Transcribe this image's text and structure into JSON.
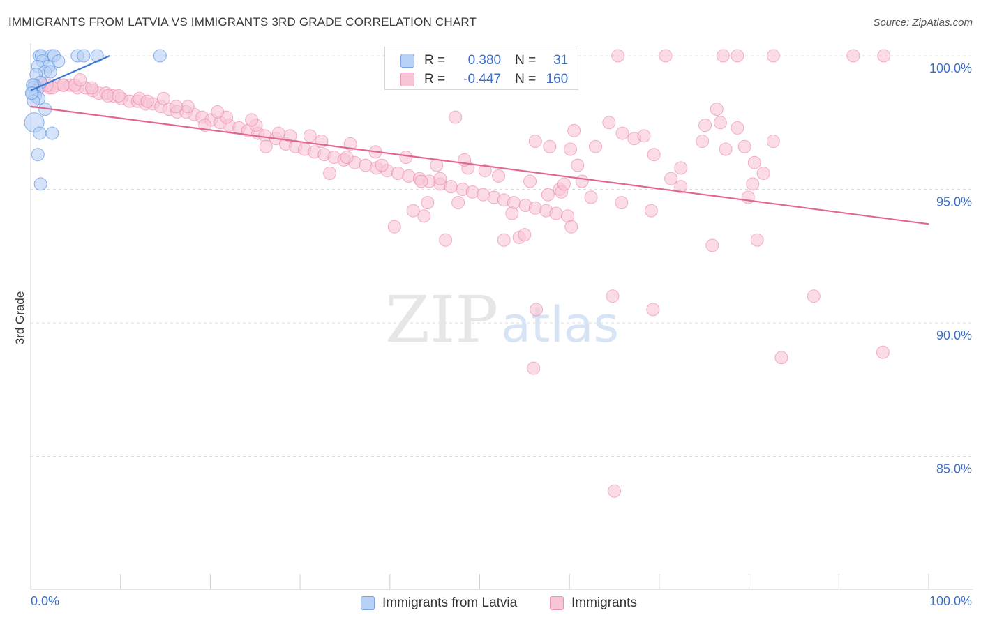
{
  "title": "IMMIGRANTS FROM LATVIA VS IMMIGRANTS 3RD GRADE CORRELATION CHART",
  "source": "Source: ZipAtlas.com",
  "watermark": {
    "zip": "ZIP",
    "atlas": "atlas"
  },
  "colors": {
    "blue": "#4a86d8",
    "blue_fill": "#b7d0f5",
    "blue_line": "#3a78d0",
    "pink": "#e8769b",
    "pink_fill": "#f8c5d6",
    "pink_line": "#e0688f",
    "axis_text": "#3b6fc7",
    "grid": "#dcdcdc"
  },
  "legend": {
    "rows": [
      {
        "r_label": "R =",
        "r_value": "0.380",
        "n_label": "N =",
        "n_value": "31"
      },
      {
        "r_label": "R =",
        "r_value": "-0.447",
        "n_label": "N =",
        "n_value": "160"
      }
    ]
  },
  "bottom_legend": {
    "series1": "Immigrants from Latvia",
    "series2": "Immigrants"
  },
  "chart_data": {
    "type": "scatter",
    "ylabel": "3rd Grade",
    "xlim": [
      0,
      100
    ],
    "ylim": [
      80.8,
      100.2
    ],
    "x_tick_labels": [
      "0.0%",
      "100.0%"
    ],
    "y_ticks": [
      {
        "value": 100,
        "label": "100.0%"
      },
      {
        "value": 95,
        "label": "95.0%"
      },
      {
        "value": 90,
        "label": "90.0%"
      },
      {
        "value": 85,
        "label": "85.0%"
      }
    ],
    "grid": true,
    "series": [
      {
        "name": "Immigrants from Latvia",
        "color": "blue",
        "trend": {
          "x": [
            0,
            8.8
          ],
          "y": [
            98.7,
            100.0
          ]
        },
        "points": [
          [
            1.0,
            100.0
          ],
          [
            1.2,
            100.0
          ],
          [
            2.3,
            100.0
          ],
          [
            2.6,
            100.0
          ],
          [
            5.2,
            100.0
          ],
          [
            5.9,
            100.0
          ],
          [
            7.4,
            100.0
          ],
          [
            14.4,
            100.0
          ],
          [
            1.3,
            99.8
          ],
          [
            2.0,
            99.6
          ],
          [
            3.1,
            99.8
          ],
          [
            0.8,
            99.6
          ],
          [
            1.6,
            99.4
          ],
          [
            2.2,
            99.4
          ],
          [
            0.6,
            99.3
          ],
          [
            1.1,
            99.0
          ],
          [
            0.4,
            98.9
          ],
          [
            0.3,
            98.8
          ],
          [
            0.7,
            98.7
          ],
          [
            0.2,
            98.6
          ],
          [
            0.5,
            98.5
          ],
          [
            0.9,
            98.4
          ],
          [
            0.3,
            98.3
          ],
          [
            1.6,
            98.0
          ],
          [
            0.4,
            97.5
          ],
          [
            2.4,
            97.1
          ],
          [
            1.0,
            97.1
          ],
          [
            0.8,
            96.3
          ],
          [
            1.1,
            95.2
          ],
          [
            0.2,
            98.9
          ],
          [
            0.1,
            98.6
          ]
        ],
        "sizes": [
          9,
          9,
          9,
          9,
          9,
          9,
          9,
          9,
          9,
          9,
          9,
          9,
          9,
          9,
          9,
          9,
          9,
          9,
          9,
          9,
          9,
          9,
          9,
          9,
          14,
          9,
          9,
          9,
          9,
          9,
          9
        ]
      },
      {
        "name": "Immigrants",
        "color": "pink",
        "trend": {
          "x": [
            0,
            100
          ],
          "y": [
            98.1,
            93.7
          ]
        },
        "points": [
          [
            65.4,
            100.0
          ],
          [
            70.7,
            100.0
          ],
          [
            77.1,
            100.0
          ],
          [
            78.7,
            100.0
          ],
          [
            82.7,
            100.0
          ],
          [
            91.6,
            100.0
          ],
          [
            95.0,
            100.0
          ],
          [
            0.5,
            98.9
          ],
          [
            1.3,
            98.9
          ],
          [
            2.1,
            98.8
          ],
          [
            2.9,
            98.9
          ],
          [
            3.7,
            98.9
          ],
          [
            4.4,
            98.9
          ],
          [
            5.2,
            98.8
          ],
          [
            6.1,
            98.8
          ],
          [
            6.9,
            98.7
          ],
          [
            7.6,
            98.6
          ],
          [
            8.4,
            98.6
          ],
          [
            9.2,
            98.5
          ],
          [
            10.1,
            98.4
          ],
          [
            11.0,
            98.3
          ],
          [
            11.9,
            98.3
          ],
          [
            12.8,
            98.2
          ],
          [
            13.6,
            98.2
          ],
          [
            14.5,
            98.1
          ],
          [
            15.4,
            98.0
          ],
          [
            16.3,
            97.9
          ],
          [
            17.3,
            97.9
          ],
          [
            18.2,
            97.8
          ],
          [
            19.1,
            97.7
          ],
          [
            20.1,
            97.6
          ],
          [
            21.1,
            97.5
          ],
          [
            22.1,
            97.4
          ],
          [
            23.2,
            97.3
          ],
          [
            24.2,
            97.2
          ],
          [
            25.3,
            97.1
          ],
          [
            26.1,
            97.0
          ],
          [
            27.3,
            96.9
          ],
          [
            28.4,
            96.7
          ],
          [
            29.5,
            96.6
          ],
          [
            30.5,
            96.5
          ],
          [
            31.6,
            96.4
          ],
          [
            32.7,
            96.3
          ],
          [
            33.8,
            96.2
          ],
          [
            34.9,
            96.1
          ],
          [
            36.1,
            96.0
          ],
          [
            37.3,
            95.9
          ],
          [
            38.5,
            95.8
          ],
          [
            39.7,
            95.7
          ],
          [
            40.9,
            95.6
          ],
          [
            42.1,
            95.5
          ],
          [
            43.3,
            95.4
          ],
          [
            44.4,
            95.3
          ],
          [
            45.6,
            95.2
          ],
          [
            46.8,
            95.1
          ],
          [
            48.1,
            95.0
          ],
          [
            49.2,
            94.9
          ],
          [
            50.4,
            94.8
          ],
          [
            51.6,
            94.7
          ],
          [
            52.7,
            94.6
          ],
          [
            53.8,
            94.5
          ],
          [
            55.1,
            94.4
          ],
          [
            56.2,
            94.3
          ],
          [
            57.4,
            94.2
          ],
          [
            58.5,
            94.1
          ],
          [
            59.8,
            94.0
          ],
          [
            2.4,
            98.8
          ],
          [
            8.6,
            98.5
          ],
          [
            12.1,
            98.4
          ],
          [
            17.5,
            98.1
          ],
          [
            21.8,
            97.7
          ],
          [
            25.1,
            97.4
          ],
          [
            28.9,
            97.0
          ],
          [
            32.4,
            96.8
          ],
          [
            35.6,
            96.7
          ],
          [
            38.4,
            96.4
          ],
          [
            41.8,
            96.2
          ],
          [
            45.2,
            95.9
          ],
          [
            48.7,
            95.8
          ],
          [
            52.1,
            95.5
          ],
          [
            55.6,
            95.3
          ],
          [
            58.9,
            95.0
          ],
          [
            62.4,
            94.7
          ],
          [
            65.8,
            94.5
          ],
          [
            69.1,
            94.2
          ],
          [
            47.3,
            97.7
          ],
          [
            56.2,
            96.8
          ],
          [
            57.8,
            96.6
          ],
          [
            60.1,
            96.5
          ],
          [
            60.9,
            95.9
          ],
          [
            62.9,
            96.6
          ],
          [
            64.4,
            97.5
          ],
          [
            65.9,
            97.1
          ],
          [
            67.2,
            96.9
          ],
          [
            68.3,
            97.0
          ],
          [
            69.4,
            96.3
          ],
          [
            71.3,
            95.4
          ],
          [
            72.4,
            95.8
          ],
          [
            74.8,
            96.8
          ],
          [
            75.1,
            97.4
          ],
          [
            76.4,
            98.0
          ],
          [
            76.8,
            97.5
          ],
          [
            77.4,
            96.5
          ],
          [
            78.7,
            97.3
          ],
          [
            79.5,
            96.6
          ],
          [
            80.6,
            96.0
          ],
          [
            81.6,
            95.6
          ],
          [
            80.4,
            95.2
          ],
          [
            82.7,
            96.8
          ],
          [
            79.9,
            94.7
          ],
          [
            72.4,
            95.1
          ],
          [
            61.4,
            95.3
          ],
          [
            59.1,
            94.9
          ],
          [
            57.6,
            94.8
          ],
          [
            53.6,
            94.1
          ],
          [
            47.6,
            94.5
          ],
          [
            43.8,
            94.0
          ],
          [
            42.6,
            94.2
          ],
          [
            40.5,
            93.6
          ],
          [
            44.2,
            94.5
          ],
          [
            46.2,
            93.1
          ],
          [
            52.7,
            93.1
          ],
          [
            54.4,
            93.2
          ],
          [
            55.0,
            93.3
          ],
          [
            60.2,
            93.6
          ],
          [
            75.9,
            92.9
          ],
          [
            64.8,
            91.0
          ],
          [
            69.3,
            90.5
          ],
          [
            56.3,
            90.5
          ],
          [
            56.0,
            88.3
          ],
          [
            83.6,
            88.7
          ],
          [
            87.2,
            91.0
          ],
          [
            94.9,
            88.9
          ],
          [
            80.9,
            93.1
          ],
          [
            65.0,
            83.7
          ],
          [
            45.6,
            95.4
          ],
          [
            35.2,
            96.2
          ],
          [
            31.1,
            97.0
          ],
          [
            27.6,
            97.1
          ],
          [
            24.6,
            97.6
          ],
          [
            20.8,
            97.9
          ],
          [
            16.2,
            98.1
          ],
          [
            13.0,
            98.3
          ],
          [
            9.8,
            98.5
          ],
          [
            6.8,
            98.8
          ],
          [
            3.6,
            98.9
          ],
          [
            1.8,
            98.9
          ],
          [
            0.9,
            98.8
          ],
          [
            4.9,
            98.9
          ],
          [
            14.8,
            98.4
          ],
          [
            19.4,
            97.4
          ],
          [
            26.2,
            96.6
          ],
          [
            33.3,
            95.6
          ],
          [
            39.1,
            95.9
          ],
          [
            43.5,
            95.3
          ],
          [
            50.6,
            95.7
          ],
          [
            5.5,
            99.1
          ],
          [
            59.4,
            95.2
          ],
          [
            60.5,
            97.2
          ],
          [
            48.3,
            96.1
          ]
        ],
        "sizes": [
          9
        ]
      }
    ]
  }
}
